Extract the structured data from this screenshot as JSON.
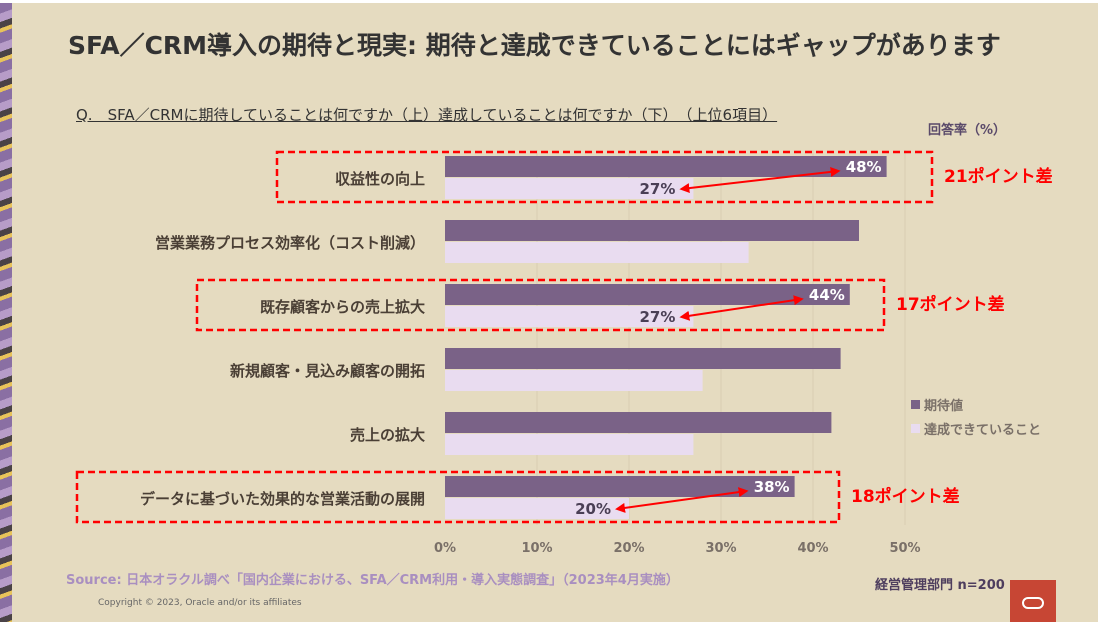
{
  "title": "SFA／CRM導入の期待と現実: 期待と達成できていることにはギャップがあります",
  "question": "Q.　SFA／CRMに期待していることは何ですか（上）達成していることは何ですか（下）　（上位6項目）",
  "unit_label": "回答率（%）",
  "source": "Source: 日本オラクル調べ「国内企業における、SFA／CRM利用・導入実態調査」（2023年4月実施）",
  "copyright": "Copyright © 2023, Oracle and/or its affiliates",
  "sample": "経営管理部門 n=200",
  "colors": {
    "expected": "#7a6287",
    "achieved": "#e9dcf0",
    "highlight": "#ff0000"
  },
  "chart_data": {
    "type": "bar",
    "orientation": "horizontal",
    "categories": [
      "収益性の向上",
      "営業業務プロセス効率化（コスト削減）",
      "既存顧客からの売上拡大",
      "新規顧客・見込み顧客の開拓",
      "売上の拡大",
      "データに基づいた効果的な営業活動の展開"
    ],
    "series": [
      {
        "name": "期待値",
        "values": [
          48,
          45,
          44,
          43,
          42,
          38
        ]
      },
      {
        "name": "達成できていること",
        "values": [
          27,
          33,
          27,
          28,
          27,
          20
        ]
      }
    ],
    "xlim": [
      0,
      50
    ],
    "xticks": [
      "0%",
      "10%",
      "20%",
      "30%",
      "40%",
      "50%"
    ],
    "grid": true,
    "legend": "right",
    "data_labels": [
      {
        "cat": 0,
        "expected": "48%",
        "achieved": "27%"
      },
      {
        "cat": 2,
        "expected": "44%",
        "achieved": "27%"
      },
      {
        "cat": 5,
        "expected": "38%",
        "achieved": "20%"
      }
    ],
    "annotations": [
      {
        "cat": 0,
        "text": "21ポイント差"
      },
      {
        "cat": 2,
        "text": "17ポイント差"
      },
      {
        "cat": 5,
        "text": "18ポイント差"
      }
    ]
  }
}
